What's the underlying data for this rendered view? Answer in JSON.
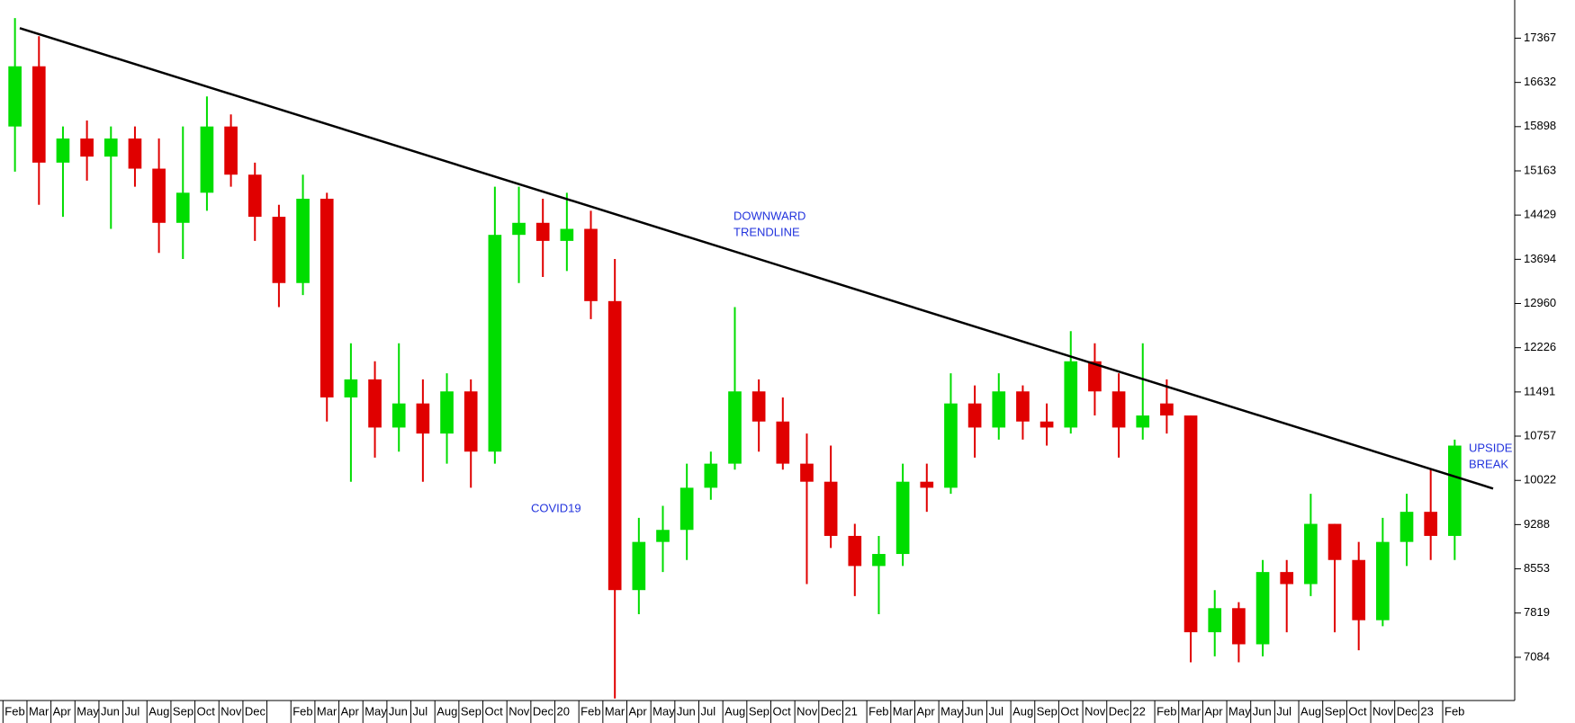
{
  "chart_data": {
    "type": "candlestick",
    "categories": [
      "Feb",
      "Mar",
      "Apr",
      "May",
      "Jun",
      "Jul",
      "Aug",
      "Sep",
      "Oct",
      "Nov",
      "Dec",
      null,
      "Feb",
      "Mar",
      "Apr",
      "May",
      "Jun",
      "Jul",
      "Aug",
      "Sep",
      "Oct",
      "Nov",
      "Dec",
      "20",
      "Feb",
      "Mar",
      "Apr",
      "May",
      "Jun",
      "Jul",
      "Aug",
      "Sep",
      "Oct",
      "Nov",
      "Dec",
      "21",
      "Feb",
      "Mar",
      "Apr",
      "May",
      "Jun",
      "Jul",
      "Aug",
      "Sep",
      "Oct",
      "Nov",
      "Dec",
      "22",
      "Feb",
      "Mar",
      "Apr",
      "May",
      "Jun",
      "Jul",
      "Aug",
      "Sep",
      "Oct",
      "Nov",
      "Dec",
      "23",
      "Feb"
    ],
    "open": [
      15900,
      16900,
      15300,
      15700,
      15400,
      15700,
      15200,
      14300,
      14800,
      15900,
      15100,
      14400,
      13300,
      14700,
      11400,
      11700,
      10900,
      11300,
      10800,
      11500,
      10500,
      14100,
      14300,
      14000,
      14200,
      13000,
      8200,
      9000,
      9200,
      9900,
      10300,
      11500,
      11000,
      10300,
      10000,
      9100,
      8600,
      8800,
      10000,
      9900,
      11300,
      10900,
      11500,
      11000,
      10900,
      12000,
      11500,
      10900,
      11300,
      11100,
      7500,
      7900,
      7300,
      8500,
      8300,
      9300,
      8700,
      7700,
      9000,
      9500,
      9100
    ],
    "high": [
      17700,
      17400,
      15900,
      16000,
      15900,
      15900,
      15700,
      15900,
      16400,
      16100,
      15300,
      14600,
      15100,
      14800,
      12300,
      12000,
      12300,
      11700,
      11800,
      11700,
      14900,
      14900,
      14700,
      14800,
      14500,
      13700,
      9400,
      9600,
      10300,
      10500,
      12900,
      11700,
      11400,
      10800,
      10600,
      9300,
      9100,
      10300,
      10300,
      11800,
      11600,
      11800,
      11600,
      11300,
      12500,
      12300,
      11800,
      12300,
      11700,
      11100,
      8200,
      8000,
      8700,
      8700,
      9800,
      9300,
      9000,
      9400,
      9800,
      10200,
      10700
    ],
    "low": [
      15150,
      14600,
      14400,
      15000,
      14200,
      14900,
      13800,
      13700,
      14500,
      14900,
      14000,
      12900,
      13100,
      11000,
      10000,
      10400,
      10500,
      10000,
      10300,
      9900,
      10300,
      13300,
      13400,
      13500,
      12700,
      6400,
      7800,
      8500,
      8700,
      9700,
      10200,
      10500,
      10200,
      8300,
      8900,
      8100,
      7800,
      8600,
      9500,
      9800,
      10400,
      10700,
      10700,
      10600,
      10800,
      11100,
      10400,
      10700,
      10800,
      7000,
      7100,
      7000,
      7100,
      7500,
      8100,
      7500,
      7200,
      7600,
      8600,
      8700,
      8700
    ],
    "close": [
      16900,
      15300,
      15700,
      15400,
      15700,
      15200,
      14300,
      14800,
      15900,
      15100,
      14400,
      13300,
      14700,
      11400,
      11700,
      10900,
      11300,
      10800,
      11500,
      10500,
      14100,
      14300,
      14000,
      14200,
      13000,
      8200,
      9000,
      9200,
      9900,
      10300,
      11500,
      11000,
      10300,
      10000,
      9100,
      8600,
      8800,
      10000,
      9900,
      11300,
      10900,
      11500,
      11000,
      10900,
      12000,
      11500,
      10900,
      11100,
      11100,
      7500,
      7900,
      7300,
      8500,
      8300,
      9300,
      8700,
      7700,
      9000,
      9500,
      9100,
      10600
    ],
    "up_color": "#00dd00",
    "down_color": "#e00000",
    "xlim": [
      0,
      63
    ],
    "ylim": [
      6366,
      18001
    ],
    "yticks": [
      7084,
      7819,
      8553,
      9288,
      10022,
      10757,
      11491,
      12226,
      12960,
      13694,
      14429,
      15163,
      15898,
      16632,
      17367
    ],
    "trendline": {
      "start": [
        0.7,
        17534
      ],
      "end": [
        62.1,
        9887
      ],
      "color": "#000000"
    },
    "annotations": [
      {
        "lines": [
          "DOWNWARD",
          "TRENDLINE"
        ]
      },
      {
        "lines": [
          "COVID19"
        ]
      },
      {
        "lines": [
          "UPSIDE",
          "BREAK"
        ]
      }
    ]
  }
}
